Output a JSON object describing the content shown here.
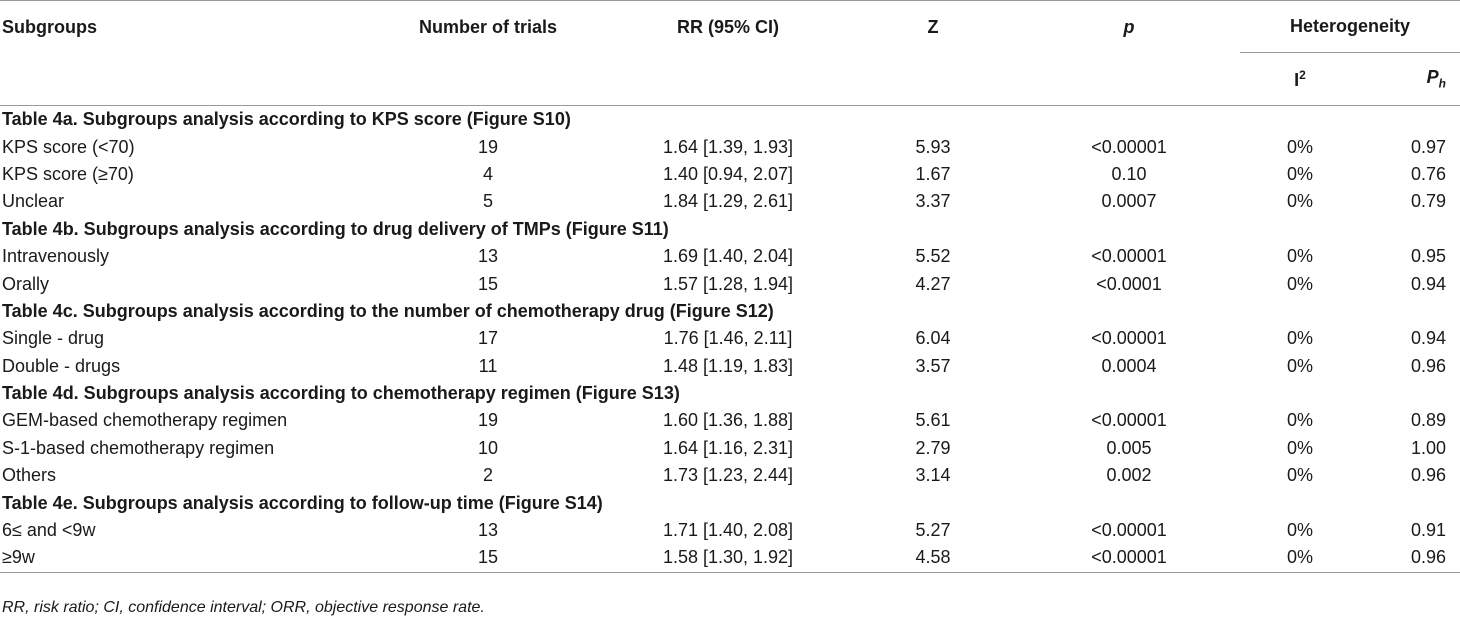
{
  "headers": {
    "subgroups": "Subgroups",
    "trials": "Number of trials",
    "rr": "RR (95% CI)",
    "z": "Z",
    "p": "p",
    "heterogeneity": "Heterogeneity",
    "i2": "I",
    "i2_sup": "2",
    "ph": "P",
    "ph_sub": "h"
  },
  "sections": [
    {
      "title": "Table 4a. Subgroups analysis according to KPS score (Figure S10)",
      "rows": [
        [
          "KPS score (<70)",
          "19",
          "1.64 [1.39, 1.93]",
          "5.93",
          "<0.00001",
          "0%",
          "0.97"
        ],
        [
          "KPS score (≥70)",
          "4",
          "1.40 [0.94, 2.07]",
          "1.67",
          "0.10",
          "0%",
          "0.76"
        ],
        [
          "Unclear",
          "5",
          "1.84 [1.29, 2.61]",
          "3.37",
          "0.0007",
          "0%",
          "0.79"
        ]
      ]
    },
    {
      "title": "Table 4b. Subgroups analysis according to drug delivery of TMPs (Figure S11)",
      "rows": [
        [
          "Intravenously",
          "13",
          "1.69 [1.40, 2.04]",
          "5.52",
          "<0.00001",
          "0%",
          "0.95"
        ],
        [
          "Orally",
          "15",
          "1.57 [1.28, 1.94]",
          "4.27",
          "<0.0001",
          "0%",
          "0.94"
        ]
      ]
    },
    {
      "title": "Table 4c. Subgroups analysis according to the number of chemotherapy drug (Figure S12)",
      "rows": [
        [
          "Single - drug",
          "17",
          "1.76 [1.46, 2.11]",
          "6.04",
          "<0.00001",
          "0%",
          "0.94"
        ],
        [
          "Double - drugs",
          "11",
          "1.48 [1.19, 1.83]",
          "3.57",
          "0.0004",
          "0%",
          "0.96"
        ]
      ]
    },
    {
      "title": "Table 4d. Subgroups analysis according to chemotherapy regimen (Figure S13)",
      "rows": [
        [
          "GEM-based chemotherapy regimen",
          "19",
          "1.60 [1.36, 1.88]",
          "5.61",
          "<0.00001",
          "0%",
          "0.89"
        ],
        [
          "S-1-based chemotherapy regimen",
          "10",
          "1.64 [1.16, 2.31]",
          "2.79",
          "0.005",
          "0%",
          "1.00"
        ],
        [
          "Others",
          "2",
          "1.73 [1.23, 2.44]",
          "3.14",
          "0.002",
          "0%",
          "0.96"
        ]
      ]
    },
    {
      "title": "Table 4e. Subgroups analysis according to follow-up time (Figure S14)",
      "rows": [
        [
          "6≤ and <9w",
          "13",
          "1.71 [1.40, 2.08]",
          "5.27",
          "<0.00001",
          "0%",
          "0.91"
        ],
        [
          "≥9w",
          "15",
          "1.58 [1.30, 1.92]",
          "4.58",
          "<0.00001",
          "0%",
          "0.96"
        ]
      ]
    }
  ],
  "footnote": "RR, risk ratio; CI, confidence interval; ORR, objective response rate."
}
